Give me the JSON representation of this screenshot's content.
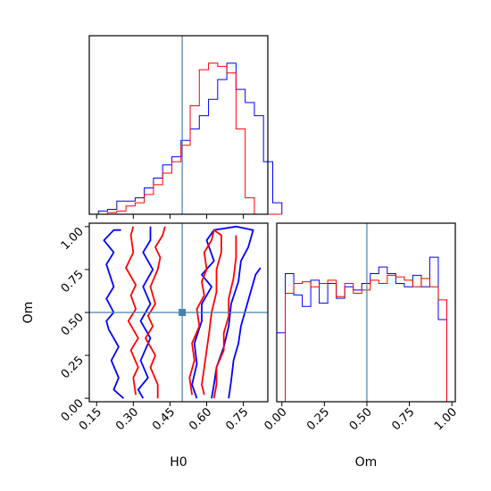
{
  "chart_data": {
    "type": "corner",
    "parameters": [
      "H0",
      "Om"
    ],
    "truth": {
      "H0": 0.5,
      "Om": 0.5
    },
    "colors": {
      "blue": "#0000ff",
      "red": "#ff0000",
      "truth": "#4682b4"
    },
    "panels": [
      {
        "name": "H0-marginal",
        "type": "histogram",
        "xlim": [
          0.12,
          0.85
        ],
        "bin_width": 0.0375,
        "bin_start": 0.12,
        "series": [
          {
            "color": "blue",
            "counts": [
              0.0,
              0.02,
              0.03,
              0.08,
              0.08,
              0.1,
              0.16,
              0.22,
              0.3,
              0.35,
              0.45,
              0.52,
              0.6,
              0.7,
              0.82,
              0.92,
              0.76,
              0.68,
              0.6,
              0.32,
              0.07
            ]
          },
          {
            "color": "red",
            "counts": [
              0.0,
              0.0,
              0.01,
              0.02,
              0.05,
              0.07,
              0.12,
              0.18,
              0.25,
              0.32,
              0.42,
              0.66,
              0.88,
              0.92,
              0.9,
              0.86,
              0.52,
              0.1,
              0.0,
              0.0,
              0.0
            ]
          }
        ]
      },
      {
        "name": "H0-Om-joint",
        "type": "contour",
        "xlim": [
          0.12,
          0.85
        ],
        "ylim": [
          -0.02,
          1.02
        ],
        "xlabel": "H0",
        "ylabel": "Om",
        "xticks": [
          "0.15",
          "0.30",
          "0.45",
          "0.60",
          "0.75"
        ],
        "yticks": [
          "0.00",
          "0.25",
          "0.50",
          "0.75",
          "1.00"
        ],
        "series": [
          {
            "color": "blue",
            "contours": [
              [
                [
                  0.26,
                  0.0
                ],
                [
                  0.22,
                  0.05
                ],
                [
                  0.24,
                  0.12
                ],
                [
                  0.21,
                  0.22
                ],
                [
                  0.24,
                  0.3
                ],
                [
                  0.2,
                  0.4
                ],
                [
                  0.19,
                  0.45
                ],
                [
                  0.22,
                  0.5
                ],
                [
                  0.19,
                  0.58
                ],
                [
                  0.22,
                  0.65
                ],
                [
                  0.19,
                  0.78
                ],
                [
                  0.22,
                  0.85
                ],
                [
                  0.18,
                  0.92
                ],
                [
                  0.22,
                  0.98
                ],
                [
                  0.25,
                  0.98
                ]
              ],
              [
                [
                  0.37,
                  1.0
                ],
                [
                  0.37,
                  0.92
                ],
                [
                  0.34,
                  0.85
                ],
                [
                  0.38,
                  0.75
                ],
                [
                  0.34,
                  0.65
                ],
                [
                  0.37,
                  0.55
                ],
                [
                  0.33,
                  0.45
                ],
                [
                  0.37,
                  0.35
                ],
                [
                  0.33,
                  0.22
                ],
                [
                  0.36,
                  0.12
                ],
                [
                  0.32,
                  0.05
                ],
                [
                  0.34,
                  0.0
                ]
              ],
              [
                [
                  0.56,
                  0.0
                ],
                [
                  0.54,
                  0.08
                ],
                [
                  0.56,
                  0.2
                ],
                [
                  0.55,
                  0.32
                ],
                [
                  0.58,
                  0.45
                ],
                [
                  0.58,
                  0.55
                ],
                [
                  0.62,
                  0.65
                ],
                [
                  0.58,
                  0.72
                ],
                [
                  0.63,
                  0.8
                ],
                [
                  0.6,
                  0.92
                ],
                [
                  0.63,
                  0.98
                ],
                [
                  0.72,
                  1.0
                ],
                [
                  0.79,
                  0.98
                ],
                [
                  0.77,
                  0.88
                ],
                [
                  0.74,
                  0.8
                ],
                [
                  0.73,
                  0.68
                ],
                [
                  0.7,
                  0.55
                ],
                [
                  0.69,
                  0.42
                ],
                [
                  0.67,
                  0.3
                ],
                [
                  0.64,
                  0.18
                ],
                [
                  0.63,
                  0.08
                ],
                [
                  0.62,
                  0.0
                ]
              ],
              [
                [
                  0.69,
                  0.0
                ],
                [
                  0.7,
                  0.1
                ],
                [
                  0.71,
                  0.22
                ],
                [
                  0.73,
                  0.32
                ],
                [
                  0.74,
                  0.42
                ],
                [
                  0.76,
                  0.52
                ],
                [
                  0.78,
                  0.62
                ],
                [
                  0.8,
                  0.72
                ],
                [
                  0.82,
                  0.76
                ]
              ]
            ]
          },
          {
            "color": "red",
            "contours": [
              [
                [
                  0.31,
                  0.02
                ],
                [
                  0.3,
                  0.12
                ],
                [
                  0.32,
                  0.18
                ],
                [
                  0.29,
                  0.28
                ],
                [
                  0.32,
                  0.35
                ],
                [
                  0.28,
                  0.45
                ],
                [
                  0.31,
                  0.52
                ],
                [
                  0.29,
                  0.6
                ],
                [
                  0.31,
                  0.66
                ],
                [
                  0.27,
                  0.76
                ],
                [
                  0.3,
                  0.85
                ],
                [
                  0.29,
                  0.95
                ],
                [
                  0.3,
                  1.0
                ]
              ],
              [
                [
                  0.4,
                  0.0
                ],
                [
                  0.4,
                  0.08
                ],
                [
                  0.37,
                  0.18
                ],
                [
                  0.39,
                  0.25
                ],
                [
                  0.35,
                  0.35
                ],
                [
                  0.38,
                  0.42
                ],
                [
                  0.36,
                  0.48
                ],
                [
                  0.39,
                  0.55
                ],
                [
                  0.37,
                  0.65
                ],
                [
                  0.4,
                  0.75
                ],
                [
                  0.41,
                  0.82
                ],
                [
                  0.39,
                  0.88
                ],
                [
                  0.42,
                  0.95
                ],
                [
                  0.43,
                  1.0
                ]
              ],
              [
                [
                  0.54,
                  0.02
                ],
                [
                  0.53,
                  0.12
                ],
                [
                  0.55,
                  0.22
                ],
                [
                  0.54,
                  0.32
                ],
                [
                  0.57,
                  0.42
                ],
                [
                  0.56,
                  0.52
                ],
                [
                  0.59,
                  0.6
                ],
                [
                  0.58,
                  0.68
                ],
                [
                  0.6,
                  0.75
                ],
                [
                  0.59,
                  0.85
                ],
                [
                  0.62,
                  0.92
                ],
                [
                  0.63,
                  0.98
                ],
                [
                  0.66,
                  0.95
                ],
                [
                  0.66,
                  0.85
                ],
                [
                  0.64,
                  0.75
                ],
                [
                  0.64,
                  0.62
                ],
                [
                  0.62,
                  0.5
                ],
                [
                  0.61,
                  0.38
                ],
                [
                  0.6,
                  0.28
                ],
                [
                  0.59,
                  0.18
                ],
                [
                  0.58,
                  0.08
                ],
                [
                  0.59,
                  0.02
                ]
              ],
              [
                [
                  0.63,
                  0.0
                ],
                [
                  0.64,
                  0.08
                ],
                [
                  0.64,
                  0.18
                ],
                [
                  0.67,
                  0.28
                ],
                [
                  0.67,
                  0.38
                ],
                [
                  0.69,
                  0.48
                ],
                [
                  0.69,
                  0.58
                ],
                [
                  0.71,
                  0.7
                ],
                [
                  0.72,
                  0.82
                ],
                [
                  0.72,
                  0.95
                ]
              ]
            ]
          }
        ]
      },
      {
        "name": "Om-marginal",
        "type": "histogram",
        "xlim": [
          -0.03,
          1.02
        ],
        "xlabel": "Om",
        "xticks": [
          "0.00",
          "0.25",
          "0.50",
          "0.75",
          "1.00"
        ],
        "bin_width": 0.05,
        "bin_start": -0.03,
        "series": [
          {
            "color": "blue",
            "counts": [
              0.42,
              0.78,
              0.65,
              0.58,
              0.74,
              0.6,
              0.72,
              0.63,
              0.7,
              0.68,
              0.72,
              0.78,
              0.82,
              0.78,
              0.72,
              0.7,
              0.77,
              0.7,
              0.88,
              0.5
            ]
          },
          {
            "color": "red",
            "counts": [
              0.0,
              0.66,
              0.72,
              0.73,
              0.7,
              0.72,
              0.74,
              0.64,
              0.72,
              0.66,
              0.68,
              0.74,
              0.72,
              0.77,
              0.76,
              0.74,
              0.7,
              0.75,
              0.7,
              0.62
            ]
          }
        ]
      }
    ]
  }
}
